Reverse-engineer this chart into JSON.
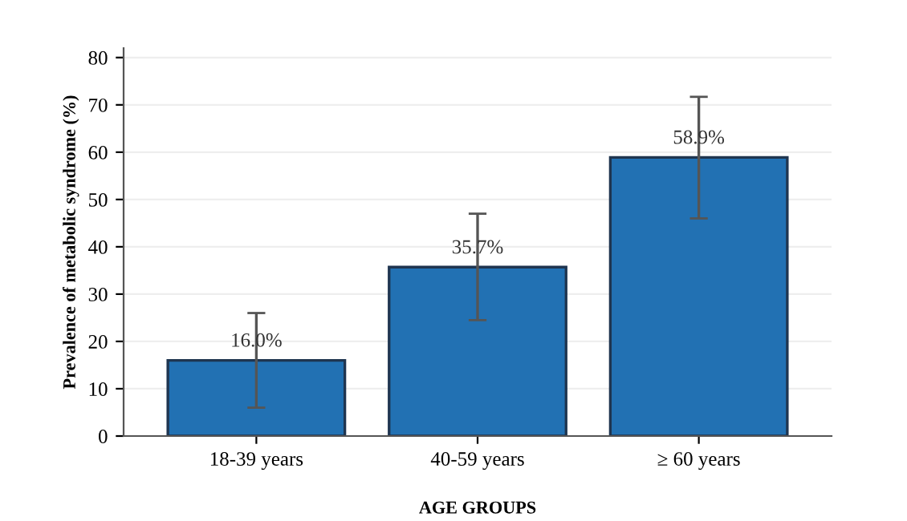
{
  "chart_data": {
    "type": "bar",
    "xlabel": "AGE GROUPS",
    "ylabel": "Prevalence of metabolic syndrome (%)",
    "categories": [
      "18-39 years",
      "40-59 years",
      "≥ 60 years"
    ],
    "values": [
      16.0,
      35.7,
      58.9
    ],
    "errors": [
      [
        6,
        26
      ],
      [
        24.5,
        47
      ],
      [
        46,
        71.7
      ]
    ],
    "value_labels": [
      "16.0%",
      "35.7%",
      "58.9%"
    ],
    "color": "#2271b3",
    "ylim": [
      0,
      82
    ],
    "yticks": [
      0,
      10,
      20,
      30,
      40,
      50,
      60,
      70,
      80
    ],
    "grid": "y"
  }
}
